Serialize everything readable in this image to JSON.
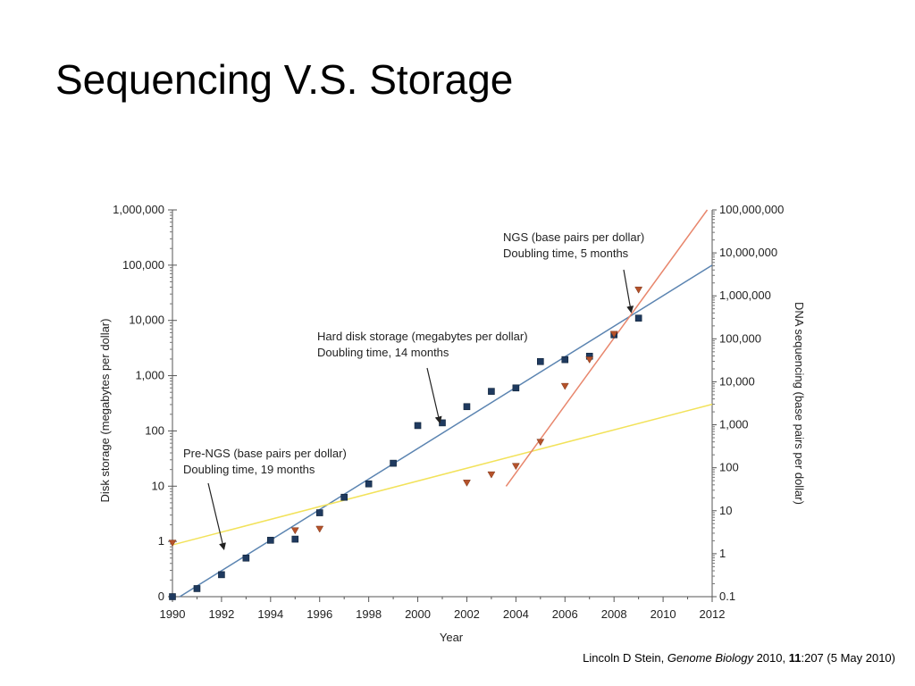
{
  "slide": {
    "title": "Sequencing V.S. Storage",
    "citation": {
      "author": "Lincoln D Stein, ",
      "journal": "Genome Biology",
      "year": " 2010, ",
      "volume": "11",
      "rest": ":207 (5 May 2010)"
    }
  },
  "chart_data": {
    "type": "scatter",
    "xlabel": "Year",
    "ylabel_left": "Disk storage (megabytes per dollar)",
    "ylabel_right": "DNA sequencing (base pairs per dollar)",
    "xlim": [
      1990,
      2012
    ],
    "x_ticks": [
      1990,
      1992,
      1994,
      1996,
      1998,
      2000,
      2002,
      2004,
      2006,
      2008,
      2010,
      2012
    ],
    "ylim_left": [
      0.1,
      1000000
    ],
    "ylim_right": [
      0.1,
      100000000
    ],
    "log_scale": true,
    "y_ticks_left": [
      {
        "value": 0.1,
        "label": "0"
      },
      {
        "value": 1,
        "label": "1"
      },
      {
        "value": 10,
        "label": "10"
      },
      {
        "value": 100,
        "label": "100"
      },
      {
        "value": 1000,
        "label": "1,000"
      },
      {
        "value": 10000,
        "label": "10,000"
      },
      {
        "value": 100000,
        "label": "100,000"
      },
      {
        "value": 1000000,
        "label": "1,000,000"
      }
    ],
    "y_ticks_right": [
      {
        "value": 0.1,
        "label": "0.1"
      },
      {
        "value": 1,
        "label": "1"
      },
      {
        "value": 10,
        "label": "10"
      },
      {
        "value": 100,
        "label": "100"
      },
      {
        "value": 1000,
        "label": "1,000"
      },
      {
        "value": 10000,
        "label": "10,000"
      },
      {
        "value": 100000,
        "label": "100,000"
      },
      {
        "value": 1000000,
        "label": "1,000,000"
      },
      {
        "value": 10000000,
        "label": "10,000,000"
      },
      {
        "value": 100000000,
        "label": "100,000,000"
      }
    ],
    "colors": {
      "disk_points": "#1f3a5f",
      "disk_trend": "#5b84b1",
      "seq_points": "#b5522a",
      "ngs_trend": "#e8866c",
      "prengs_trend": "#f2e25a"
    },
    "series": [
      {
        "axis": "left",
        "marker": "square",
        "points": [
          {
            "x": 1990,
            "y": 0.1
          },
          {
            "x": 1991,
            "y": 0.14
          },
          {
            "x": 1992,
            "y": 0.25
          },
          {
            "x": 1993,
            "y": 0.5
          },
          {
            "x": 1994,
            "y": 1.05
          },
          {
            "x": 1995,
            "y": 1.1
          },
          {
            "x": 1996,
            "y": 3.3
          },
          {
            "x": 1997,
            "y": 6.3
          },
          {
            "x": 1998,
            "y": 11
          },
          {
            "x": 1999,
            "y": 26
          },
          {
            "x": 2000,
            "y": 125
          },
          {
            "x": 2001,
            "y": 140
          },
          {
            "x": 2002,
            "y": 275
          },
          {
            "x": 2003,
            "y": 520
          },
          {
            "x": 2004,
            "y": 600
          },
          {
            "x": 2005,
            "y": 1800
          },
          {
            "x": 2006,
            "y": 1950
          },
          {
            "x": 2007,
            "y": 2250
          },
          {
            "x": 2008,
            "y": 5500
          },
          {
            "x": 2009,
            "y": 11000
          }
        ]
      },
      {
        "axis": "right",
        "marker": "triangle-down",
        "points": [
          {
            "x": 1990,
            "y": 1.8
          },
          {
            "x": 1995,
            "y": 3.5
          },
          {
            "x": 1996,
            "y": 3.8
          },
          {
            "x": 2002,
            "y": 45
          },
          {
            "x": 2003,
            "y": 70
          },
          {
            "x": 2004,
            "y": 110
          },
          {
            "x": 2005,
            "y": 400
          },
          {
            "x": 2006,
            "y": 8000
          },
          {
            "x": 2007,
            "y": 33000
          },
          {
            "x": 2008,
            "y": 130000
          },
          {
            "x": 2009,
            "y": 1400000
          }
        ]
      }
    ],
    "trend_lines": [
      {
        "axis": "left",
        "x": [
          1990.3,
          2012
        ],
        "y": [
          0.1,
          100000
        ]
      },
      {
        "axis": "right",
        "x": [
          1990,
          2012
        ],
        "y": [
          1.6,
          3000
        ]
      },
      {
        "axis": "right",
        "x": [
          2003.6,
          2011.8
        ],
        "y": [
          37,
          100000000
        ]
      }
    ],
    "annotations": [
      {
        "lines": [
          "NGS (base pairs per dollar)",
          "Doubling time, 5 months"
        ],
        "arrow_to": {
          "axis": "left",
          "x": 2008.7,
          "y": 14000
        }
      },
      {
        "lines": [
          "Hard disk storage (megabytes per dollar)",
          "Doubling time, 14 months"
        ],
        "arrow_to": {
          "axis": "left",
          "x": 2000.9,
          "y": 140
        }
      },
      {
        "lines": [
          "Pre-NGS (base pairs per dollar)",
          "Doubling time, 19 months"
        ],
        "arrow_to": {
          "axis": "left",
          "x": 1992.1,
          "y": 0.72
        }
      }
    ]
  }
}
